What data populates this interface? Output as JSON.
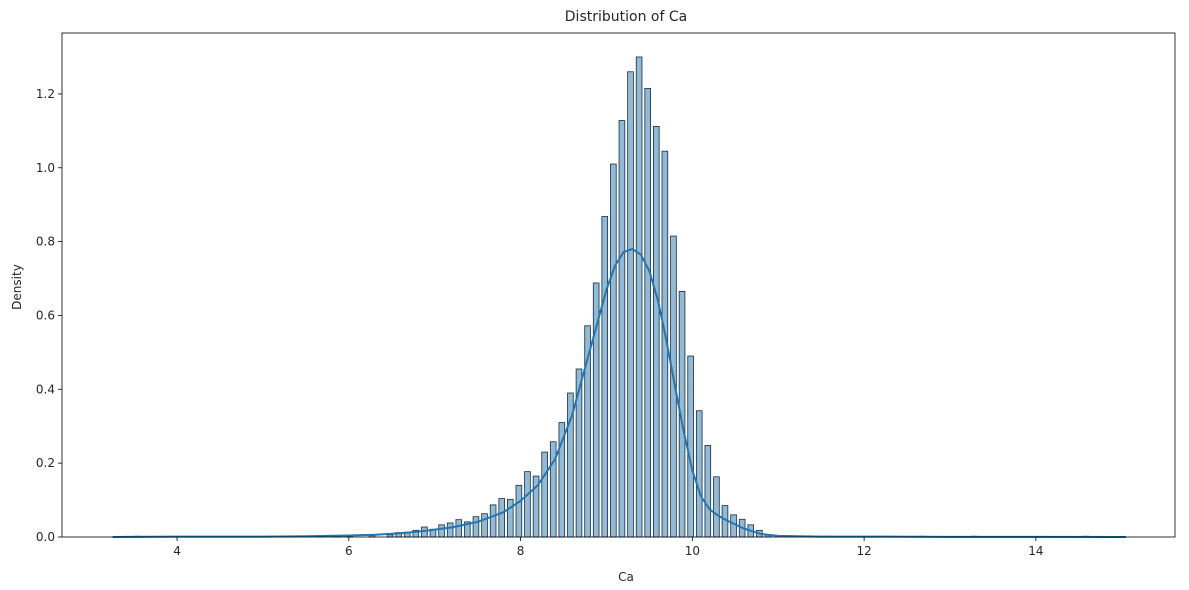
{
  "chart_data": {
    "type": "bar",
    "title": "Distribution of Ca",
    "xlabel": "Ca",
    "ylabel": "Density",
    "xlim": [
      2.66,
      15.62
    ],
    "ylim": [
      0,
      1.365
    ],
    "xticks": [
      4,
      6,
      8,
      10,
      12,
      14
    ],
    "yticks": [
      0.0,
      0.2,
      0.4,
      0.6,
      0.8,
      1.0,
      1.2
    ],
    "grid": false,
    "legend": "none",
    "colors": {
      "bar_fill": "#1f77b4",
      "bar_fill_opacity": 0.5,
      "bar_edge": "#1c2a3a",
      "kde_line": "#1f77b4"
    },
    "series": [
      {
        "kind": "histogram",
        "bin_width": 0.067,
        "bars": [
          {
            "x": 3.54,
            "y": 0.002
          },
          {
            "x": 5.27,
            "y": 0.002
          },
          {
            "x": 5.67,
            "y": 0.002
          },
          {
            "x": 5.87,
            "y": 0.003
          },
          {
            "x": 6.01,
            "y": 0.005
          },
          {
            "x": 6.27,
            "y": 0.004
          },
          {
            "x": 6.48,
            "y": 0.006
          },
          {
            "x": 6.58,
            "y": 0.012
          },
          {
            "x": 6.68,
            "y": 0.013
          },
          {
            "x": 6.78,
            "y": 0.018
          },
          {
            "x": 6.88,
            "y": 0.027
          },
          {
            "x": 6.98,
            "y": 0.021
          },
          {
            "x": 7.08,
            "y": 0.033
          },
          {
            "x": 7.18,
            "y": 0.038
          },
          {
            "x": 7.28,
            "y": 0.047
          },
          {
            "x": 7.38,
            "y": 0.041
          },
          {
            "x": 7.48,
            "y": 0.055
          },
          {
            "x": 7.58,
            "y": 0.063
          },
          {
            "x": 7.68,
            "y": 0.087
          },
          {
            "x": 7.78,
            "y": 0.104
          },
          {
            "x": 7.88,
            "y": 0.102
          },
          {
            "x": 7.98,
            "y": 0.14
          },
          {
            "x": 8.08,
            "y": 0.177
          },
          {
            "x": 8.18,
            "y": 0.165
          },
          {
            "x": 8.28,
            "y": 0.23
          },
          {
            "x": 8.38,
            "y": 0.258
          },
          {
            "x": 8.48,
            "y": 0.31
          },
          {
            "x": 8.58,
            "y": 0.39
          },
          {
            "x": 8.68,
            "y": 0.455
          },
          {
            "x": 8.78,
            "y": 0.572
          },
          {
            "x": 8.88,
            "y": 0.688
          },
          {
            "x": 8.98,
            "y": 0.868
          },
          {
            "x": 9.08,
            "y": 1.01
          },
          {
            "x": 9.18,
            "y": 1.128
          },
          {
            "x": 9.28,
            "y": 1.26
          },
          {
            "x": 9.38,
            "y": 1.3
          },
          {
            "x": 9.48,
            "y": 1.215
          },
          {
            "x": 9.58,
            "y": 1.112
          },
          {
            "x": 9.68,
            "y": 1.045
          },
          {
            "x": 9.78,
            "y": 0.815
          },
          {
            "x": 9.88,
            "y": 0.665
          },
          {
            "x": 9.98,
            "y": 0.49
          },
          {
            "x": 10.08,
            "y": 0.342
          },
          {
            "x": 10.18,
            "y": 0.248
          },
          {
            "x": 10.28,
            "y": 0.163
          },
          {
            "x": 10.38,
            "y": 0.085
          },
          {
            "x": 10.48,
            "y": 0.06
          },
          {
            "x": 10.58,
            "y": 0.048
          },
          {
            "x": 10.68,
            "y": 0.033
          },
          {
            "x": 10.78,
            "y": 0.018
          },
          {
            "x": 10.88,
            "y": 0.006
          },
          {
            "x": 11.58,
            "y": 0.002
          },
          {
            "x": 12.18,
            "y": 0.002
          },
          {
            "x": 12.68,
            "y": 0.002
          },
          {
            "x": 13.28,
            "y": 0.002
          },
          {
            "x": 14.58,
            "y": 0.002
          }
        ]
      },
      {
        "kind": "kde",
        "x": [
          3.25,
          4.0,
          5.0,
          5.5,
          6.0,
          6.3,
          6.6,
          6.9,
          7.2,
          7.5,
          7.8,
          8.0,
          8.2,
          8.4,
          8.6,
          8.8,
          9.0,
          9.1,
          9.2,
          9.3,
          9.4,
          9.5,
          9.6,
          9.7,
          9.8,
          9.9,
          10.0,
          10.1,
          10.2,
          10.3,
          10.4,
          10.6,
          10.8,
          11.0,
          11.5,
          12.0,
          13.0,
          14.0,
          15.05
        ],
        "y": [
          0.0,
          0.001,
          0.001,
          0.002,
          0.004,
          0.006,
          0.01,
          0.017,
          0.026,
          0.041,
          0.067,
          0.098,
          0.14,
          0.21,
          0.33,
          0.5,
          0.67,
          0.735,
          0.772,
          0.78,
          0.765,
          0.72,
          0.64,
          0.53,
          0.405,
          0.285,
          0.18,
          0.11,
          0.075,
          0.058,
          0.045,
          0.023,
          0.008,
          0.003,
          0.001,
          0.001,
          0.0005,
          0.0005,
          0.0
        ]
      }
    ]
  }
}
